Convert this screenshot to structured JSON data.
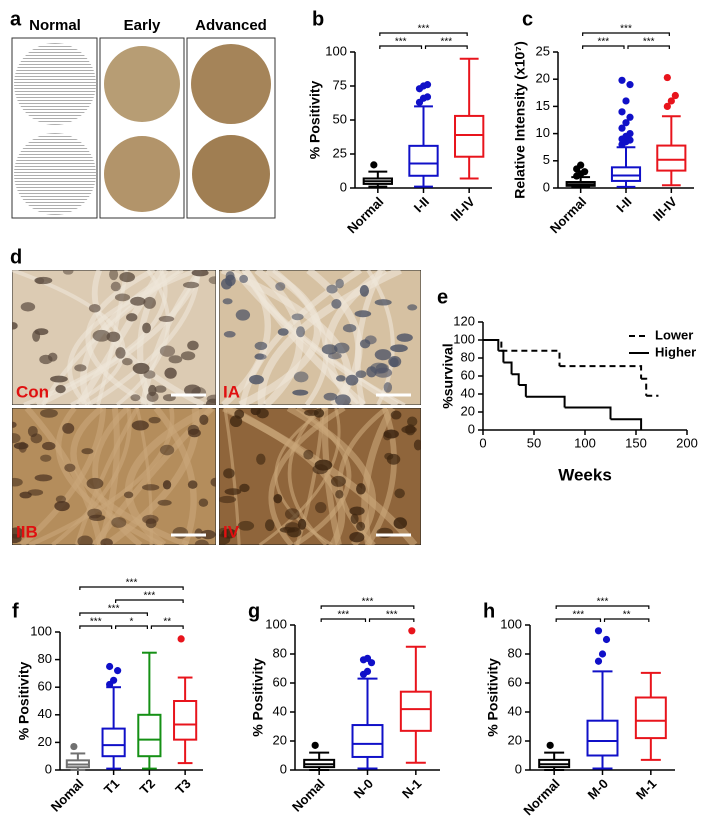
{
  "panel_a": {
    "label": "a",
    "columns": [
      "Normal",
      "Early",
      "Advanced"
    ]
  },
  "panel_d": {
    "label": "d",
    "images": [
      "Con",
      "IA",
      "IIB",
      "IV"
    ]
  },
  "chart_data": [
    {
      "type": "box",
      "label": "b",
      "ylabel": "% Positivity",
      "categories": [
        "Normal",
        "I-II",
        "III-IV"
      ],
      "colors": [
        "#000000",
        "#1010c8",
        "#e8141c"
      ],
      "ylim": [
        0,
        100
      ],
      "yticks": [
        0,
        25,
        50,
        75,
        100
      ],
      "boxes": [
        {
          "min": 1,
          "q1": 3,
          "median": 5,
          "q3": 7,
          "max": 12,
          "outliers": [
            17
          ]
        },
        {
          "min": 1,
          "q1": 9,
          "median": 18,
          "q3": 31,
          "max": 60,
          "outliers": [
            63,
            66,
            67,
            73,
            75,
            76
          ]
        },
        {
          "min": 7,
          "q1": 23,
          "median": 39,
          "q3": 53,
          "max": 95,
          "outliers": []
        }
      ],
      "brackets": [
        {
          "between": [
            0,
            1
          ],
          "label": "***"
        },
        {
          "between": [
            1,
            2
          ],
          "label": "***"
        },
        {
          "between": [
            0,
            2
          ],
          "label": "***"
        }
      ]
    },
    {
      "type": "box",
      "label": "c",
      "ylabel": "Relative Intensity (x10⁷)",
      "categories": [
        "Normal",
        "I-II",
        "III-IV"
      ],
      "colors": [
        "#000000",
        "#1010c8",
        "#e8141c"
      ],
      "ylim": [
        0,
        25
      ],
      "yticks": [
        0,
        5,
        10,
        15,
        20,
        25
      ],
      "boxes": [
        {
          "min": 0.1,
          "q1": 0.4,
          "median": 0.7,
          "q3": 1.1,
          "max": 2,
          "outliers": [
            2.2,
            2.6,
            3,
            3.5,
            4.2
          ]
        },
        {
          "min": 0.2,
          "q1": 1.3,
          "median": 2.3,
          "q3": 3.8,
          "max": 7.5,
          "outliers": [
            8,
            8.5,
            8.8,
            9,
            9.5,
            10,
            11,
            12,
            13,
            14,
            16,
            19,
            19.8
          ]
        },
        {
          "min": 0.5,
          "q1": 3.2,
          "median": 5.2,
          "q3": 7.8,
          "max": 13.2,
          "outliers": [
            15,
            16,
            17,
            20.3
          ]
        }
      ],
      "brackets": [
        {
          "between": [
            0,
            1
          ],
          "label": "***"
        },
        {
          "between": [
            1,
            2
          ],
          "label": "***"
        },
        {
          "between": [
            0,
            2
          ],
          "label": "***"
        }
      ]
    },
    {
      "type": "step",
      "label": "e",
      "xlabel": "Weeks",
      "ylabel": "%survival",
      "xlim": [
        0,
        200
      ],
      "xticks": [
        0,
        50,
        100,
        150,
        200
      ],
      "ylim": [
        0,
        120
      ],
      "yticks": [
        0,
        20,
        40,
        60,
        80,
        100,
        120
      ],
      "legend": "upper right",
      "series": [
        {
          "name": "Lower",
          "color": "#000000",
          "dashed": true,
          "x": [
            0,
            18,
            75,
            155,
            160,
            172
          ],
          "values": [
            100,
            88,
            71,
            57,
            38,
            38
          ]
        },
        {
          "name": "Higher",
          "color": "#000000",
          "dashed": false,
          "x": [
            0,
            15,
            20,
            28,
            35,
            42,
            80,
            125,
            155
          ],
          "values": [
            100,
            88,
            75,
            62,
            50,
            37,
            25,
            12,
            0
          ]
        }
      ]
    },
    {
      "type": "box",
      "label": "f",
      "ylabel": "% Positivity",
      "categories": [
        "Nomal",
        "T1",
        "T2",
        "T3"
      ],
      "colors": [
        "#707070",
        "#1010c8",
        "#159015",
        "#e8141c"
      ],
      "ylim": [
        0,
        100
      ],
      "yticks": [
        0,
        20,
        40,
        60,
        80,
        100
      ],
      "boxes": [
        {
          "min": 0,
          "q1": 2,
          "median": 4,
          "q3": 7,
          "max": 12,
          "outliers": [
            17
          ]
        },
        {
          "min": 1,
          "q1": 10,
          "median": 18,
          "q3": 30,
          "max": 60,
          "outliers": [
            62,
            65,
            72,
            75
          ]
        },
        {
          "min": 1,
          "q1": 10,
          "median": 22,
          "q3": 40,
          "max": 85,
          "outliers": []
        },
        {
          "min": 5,
          "q1": 22,
          "median": 33,
          "q3": 50,
          "max": 67,
          "outliers": [
            95
          ]
        }
      ],
      "brackets": [
        {
          "between": [
            0,
            1
          ],
          "label": "***"
        },
        {
          "between": [
            1,
            2
          ],
          "label": "*"
        },
        {
          "between": [
            2,
            3
          ],
          "label": "**"
        },
        {
          "between": [
            0,
            2
          ],
          "label": "***"
        },
        {
          "between": [
            1,
            3
          ],
          "label": "***"
        },
        {
          "between": [
            0,
            3
          ],
          "label": "***"
        }
      ]
    },
    {
      "type": "box",
      "label": "g",
      "ylabel": "% Positivity",
      "categories": [
        "Nomal",
        "N-0",
        "N-1"
      ],
      "colors": [
        "#000000",
        "#1010c8",
        "#e8141c"
      ],
      "ylim": [
        0,
        100
      ],
      "yticks": [
        0,
        20,
        40,
        60,
        80,
        100
      ],
      "boxes": [
        {
          "min": 0,
          "q1": 2,
          "median": 4,
          "q3": 7,
          "max": 12,
          "outliers": [
            17
          ]
        },
        {
          "min": 1,
          "q1": 9,
          "median": 18,
          "q3": 31,
          "max": 63,
          "outliers": [
            66,
            68,
            74,
            76,
            77
          ]
        },
        {
          "min": 5,
          "q1": 27,
          "median": 42,
          "q3": 54,
          "max": 85,
          "outliers": [
            96
          ]
        }
      ],
      "brackets": [
        {
          "between": [
            0,
            1
          ],
          "label": "***"
        },
        {
          "between": [
            1,
            2
          ],
          "label": "***"
        },
        {
          "between": [
            0,
            2
          ],
          "label": "***"
        }
      ]
    },
    {
      "type": "box",
      "label": "h",
      "ylabel": "% Positivity",
      "categories": [
        "Normal",
        "M-0",
        "M-1"
      ],
      "colors": [
        "#000000",
        "#1010c8",
        "#e8141c"
      ],
      "ylim": [
        0,
        100
      ],
      "yticks": [
        0,
        20,
        40,
        60,
        80,
        100
      ],
      "boxes": [
        {
          "min": 0,
          "q1": 2,
          "median": 4,
          "q3": 7,
          "max": 12,
          "outliers": [
            17
          ]
        },
        {
          "min": 1,
          "q1": 10,
          "median": 20,
          "q3": 34,
          "max": 68,
          "outliers": [
            75,
            80,
            90,
            96
          ]
        },
        {
          "min": 7,
          "q1": 22,
          "median": 34,
          "q3": 50,
          "max": 67,
          "outliers": []
        }
      ],
      "brackets": [
        {
          "between": [
            0,
            1
          ],
          "label": "***"
        },
        {
          "between": [
            1,
            2
          ],
          "label": "**"
        },
        {
          "between": [
            0,
            2
          ],
          "label": "***"
        }
      ]
    }
  ]
}
